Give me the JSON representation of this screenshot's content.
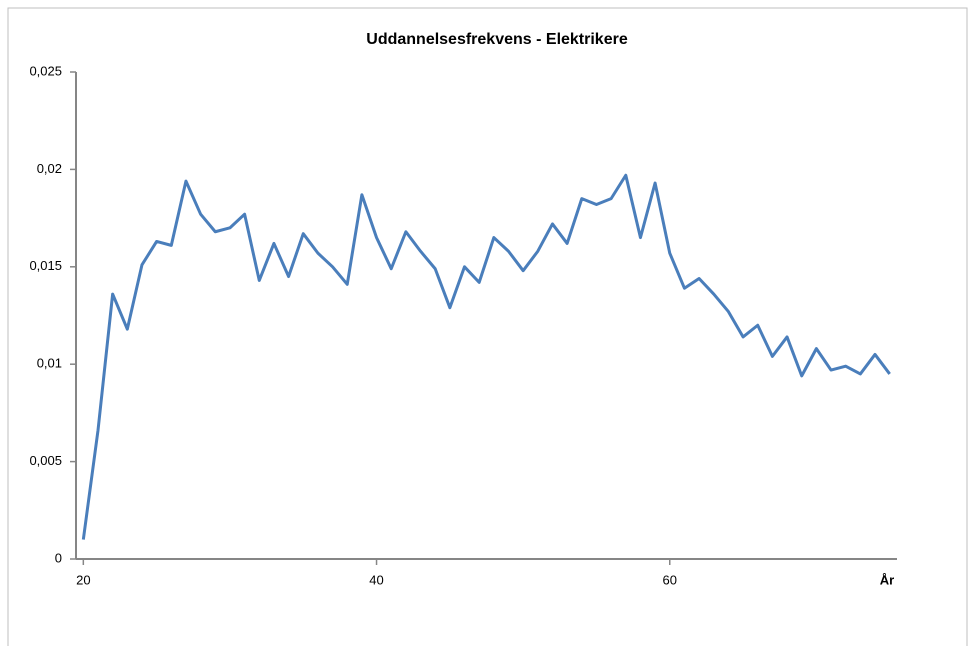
{
  "chart_data": {
    "type": "line",
    "title": "Uddannelsesfrekvens - Elektrikere",
    "x_label": "År",
    "x": [
      20,
      21,
      22,
      23,
      24,
      25,
      26,
      27,
      28,
      29,
      30,
      31,
      32,
      33,
      34,
      35,
      36,
      37,
      38,
      39,
      40,
      41,
      42,
      43,
      44,
      45,
      46,
      47,
      48,
      49,
      50,
      51,
      52,
      53,
      54,
      55,
      56,
      57,
      58,
      59,
      60,
      61,
      62,
      63,
      64,
      65,
      66,
      67,
      68,
      69,
      70,
      71,
      72,
      73,
      74,
      75
    ],
    "series": [
      {
        "color": "#4a7ebb",
        "values": [
          0.001,
          0.0066,
          0.0136,
          0.0118,
          0.0151,
          0.0163,
          0.0161,
          0.0194,
          0.0177,
          0.0168,
          0.017,
          0.0177,
          0.0143,
          0.0162,
          0.0145,
          0.0167,
          0.0157,
          0.015,
          0.0141,
          0.0187,
          0.0165,
          0.0149,
          0.0168,
          0.0158,
          0.0149,
          0.0129,
          0.015,
          0.0142,
          0.0165,
          0.0158,
          0.0148,
          0.0158,
          0.0172,
          0.0162,
          0.0185,
          0.0182,
          0.0185,
          0.0197,
          0.0165,
          0.0193,
          0.0157,
          0.0139,
          0.0144,
          0.0136,
          0.0127,
          0.0114,
          0.012,
          0.0104,
          0.0114,
          0.0094,
          0.0108,
          0.0097,
          0.0099,
          0.0095,
          0.0105,
          0.0095
        ]
      }
    ],
    "xlim": [
      19.5,
      75.5
    ],
    "xticks": [
      20,
      40,
      60
    ],
    "ylim": [
      0,
      0.025
    ],
    "yticks": [
      0,
      {
        "value": 0.005,
        "label": "0,005"
      },
      {
        "value": 0.01,
        "label": "0,01"
      },
      {
        "value": 0.015,
        "label": "0,015"
      },
      {
        "value": 0.02,
        "label": "0,02"
      },
      {
        "value": 0.025,
        "label": "0,025"
      }
    ],
    "grid": false
  }
}
